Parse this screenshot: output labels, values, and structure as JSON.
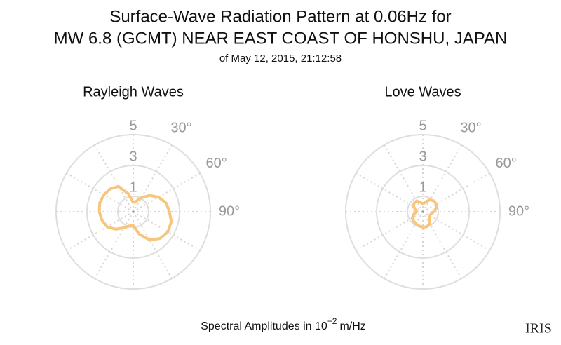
{
  "title": [
    "Surface-Wave Radiation Pattern at 0.06Hz for",
    "MW 6.8 (GCMT) NEAR EAST COAST OF HONSHU, JAPAN"
  ],
  "subtitle": "of May 12, 2015, 21:12:58",
  "axis_label": {
    "text": "Spectral Amplitudes in 10",
    "exponent": "−2",
    "unit": "m/Hz"
  },
  "logo": "IRIS",
  "chart_data": [
    {
      "type": "polar",
      "title": "Rayleigh Waves",
      "color": "#f7c57c",
      "theta": [
        0,
        15,
        30,
        45,
        60,
        75,
        90,
        105,
        120,
        135,
        150,
        165,
        180,
        195,
        210,
        225,
        240,
        255,
        270,
        285,
        300,
        315,
        330,
        345
      ],
      "values": [
        0.6,
        0.7,
        1.05,
        1.5,
        1.9,
        2.2,
        2.35,
        2.55,
        2.6,
        2.45,
        2.1,
        1.5,
        0.9,
        0.95,
        1.2,
        1.6,
        1.95,
        2.1,
        2.2,
        2.25,
        2.2,
        2.1,
        1.9,
        1.2
      ],
      "rlim": [
        0,
        5
      ],
      "rticks": [
        1,
        3,
        5
      ],
      "thetagrid": [
        0,
        30,
        60,
        90,
        120,
        150,
        180,
        210,
        240,
        270,
        300,
        330
      ],
      "thetaticks": [
        {
          "value": 30,
          "label": "30°"
        },
        {
          "value": 60,
          "label": "60°"
        },
        {
          "value": 90,
          "label": "90°"
        }
      ]
    },
    {
      "type": "polar",
      "title": "Love Waves",
      "color": "#f7c57c",
      "theta": [
        0,
        15,
        30,
        45,
        60,
        75,
        90,
        105,
        120,
        135,
        150,
        165,
        180,
        195,
        210,
        225,
        240,
        255,
        270,
        285,
        300,
        315,
        330,
        345
      ],
      "values": [
        0.5,
        0.65,
        0.9,
        1.0,
        1.0,
        0.9,
        0.7,
        0.55,
        0.5,
        0.65,
        0.9,
        1.0,
        1.0,
        0.95,
        0.9,
        0.85,
        0.8,
        0.6,
        0.4,
        0.5,
        0.7,
        0.8,
        0.8,
        0.65
      ],
      "rlim": [
        0,
        5
      ],
      "rticks": [
        1,
        3,
        5
      ],
      "thetagrid": [
        0,
        30,
        60,
        90,
        120,
        150,
        180,
        210,
        240,
        270,
        300,
        330
      ],
      "thetaticks": [
        {
          "value": 30,
          "label": "30°"
        },
        {
          "value": 60,
          "label": "60°"
        },
        {
          "value": 90,
          "label": "90°"
        }
      ]
    }
  ]
}
